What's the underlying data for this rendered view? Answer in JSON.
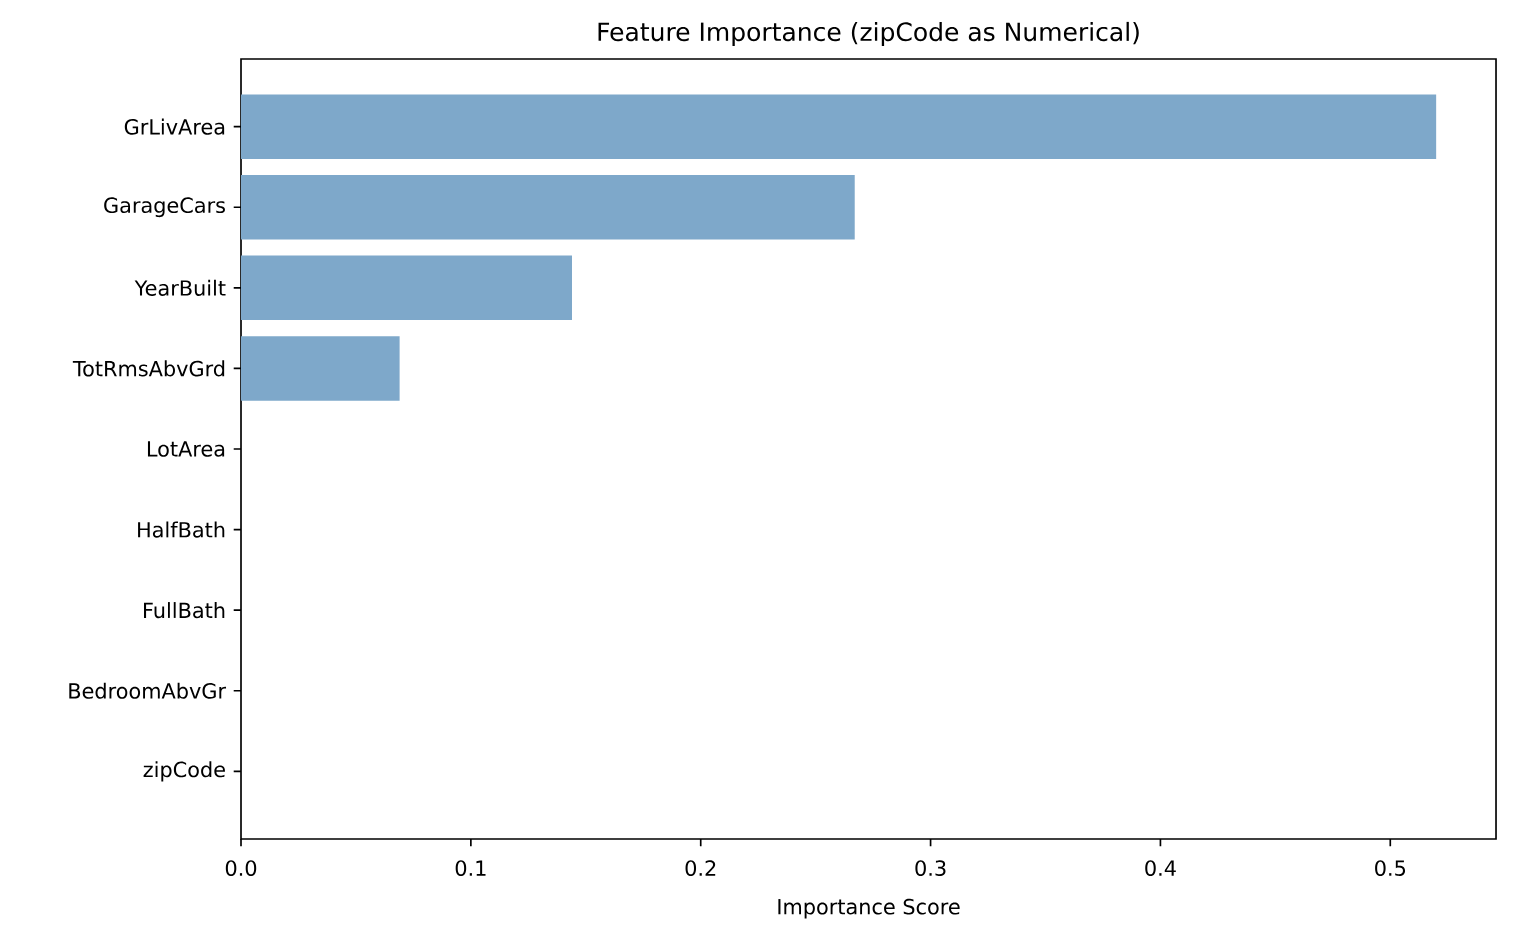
{
  "chart_data": {
    "type": "bar",
    "orientation": "horizontal",
    "title": "Feature Importance (zipCode as Numerical)",
    "xlabel": "Importance Score",
    "categories": [
      "GrLivArea",
      "GarageCars",
      "YearBuilt",
      "TotRmsAbvGrd",
      "LotArea",
      "HalfBath",
      "FullBath",
      "BedroomAbvGr",
      "zipCode"
    ],
    "values": [
      0.52,
      0.267,
      0.144,
      0.069,
      0,
      0,
      0,
      0,
      0
    ],
    "color": "#7ea8ca",
    "xlim": [
      0,
      0.546
    ],
    "xticks": [
      {
        "value": 0,
        "label": "0.0"
      },
      0.1,
      0.2,
      0.3,
      0.4,
      0.5
    ]
  }
}
